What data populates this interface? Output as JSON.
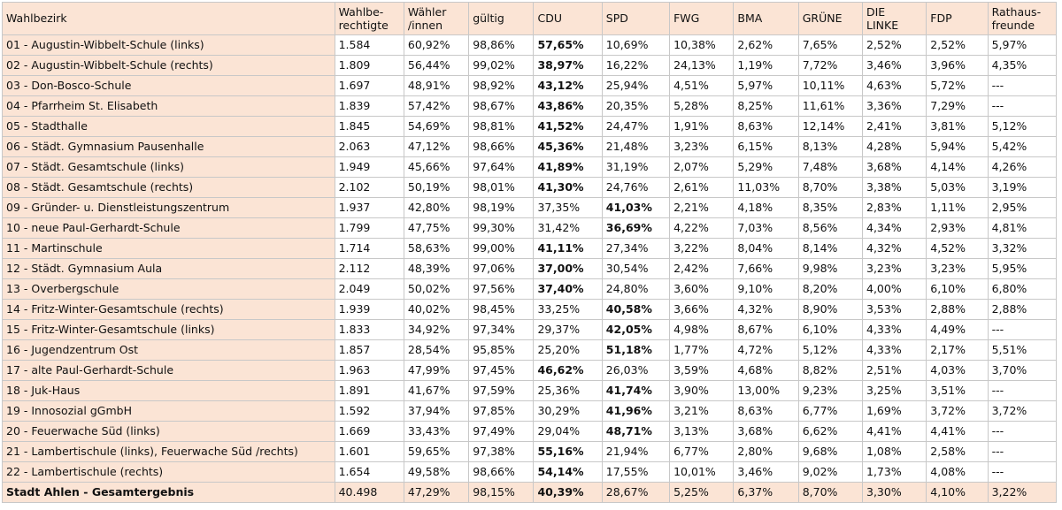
{
  "headers": [
    "Wahlbezirk",
    "Wahlbe-\nrechtigte",
    "Wähler\n/innen",
    "gültig",
    "CDU",
    "SPD",
    "FWG",
    "BMA",
    "GRÜNE",
    "DIE\nLINKE",
    "FDP",
    "Rathaus-\nfreunde"
  ],
  "rows": [
    {
      "cells": [
        "01 - Augustin-Wibbelt-Schule (links)",
        "1.584",
        "60,92%",
        "98,86%",
        "57,65%",
        "10,69%",
        "10,38%",
        "2,62%",
        "7,65%",
        "2,52%",
        "2,52%",
        "5,97%"
      ],
      "bold": [
        4
      ]
    },
    {
      "cells": [
        "02 - Augustin-Wibbelt-Schule (rechts)",
        "1.809",
        "56,44%",
        "99,02%",
        "38,97%",
        "16,22%",
        "24,13%",
        "1,19%",
        "7,72%",
        "3,46%",
        "3,96%",
        "4,35%"
      ],
      "bold": [
        4
      ]
    },
    {
      "cells": [
        "03 - Don-Bosco-Schule",
        "1.697",
        "48,91%",
        "98,92%",
        "43,12%",
        "25,94%",
        "4,51%",
        "5,97%",
        "10,11%",
        "4,63%",
        "5,72%",
        "---"
      ],
      "bold": [
        4
      ]
    },
    {
      "cells": [
        "04 - Pfarrheim St. Elisabeth",
        "1.839",
        "57,42%",
        "98,67%",
        "43,86%",
        "20,35%",
        "5,28%",
        "8,25%",
        "11,61%",
        "3,36%",
        "7,29%",
        "---"
      ],
      "bold": [
        4
      ]
    },
    {
      "cells": [
        "05 - Stadthalle",
        "1.845",
        "54,69%",
        "98,81%",
        "41,52%",
        "24,47%",
        "1,91%",
        "8,63%",
        "12,14%",
        "2,41%",
        "3,81%",
        "5,12%"
      ],
      "bold": [
        4
      ]
    },
    {
      "cells": [
        "06 - Städt. Gymnasium Pausenhalle",
        "2.063",
        "47,12%",
        "98,66%",
        "45,36%",
        "21,48%",
        "3,23%",
        "6,15%",
        "8,13%",
        "4,28%",
        "5,94%",
        "5,42%"
      ],
      "bold": [
        4
      ]
    },
    {
      "cells": [
        "07 - Städt. Gesamtschule (links)",
        "1.949",
        "45,66%",
        "97,64%",
        "41,89%",
        "31,19%",
        "2,07%",
        "5,29%",
        "7,48%",
        "3,68%",
        "4,14%",
        "4,26%"
      ],
      "bold": [
        4
      ]
    },
    {
      "cells": [
        "08 - Städt. Gesamtschule (rechts)",
        "2.102",
        "50,19%",
        "98,01%",
        "41,30%",
        "24,76%",
        "2,61%",
        "11,03%",
        "8,70%",
        "3,38%",
        "5,03%",
        "3,19%"
      ],
      "bold": [
        4
      ]
    },
    {
      "cells": [
        "09 - Gründer- u. Dienstleistungszentrum",
        "1.937",
        "42,80%",
        "98,19%",
        "37,35%",
        "41,03%",
        "2,21%",
        "4,18%",
        "8,35%",
        "2,83%",
        "1,11%",
        "2,95%"
      ],
      "bold": [
        5
      ]
    },
    {
      "cells": [
        "10 - neue Paul-Gerhardt-Schule",
        "1.799",
        "47,75%",
        "99,30%",
        "31,42%",
        "36,69%",
        "4,22%",
        "7,03%",
        "8,56%",
        "4,34%",
        "2,93%",
        "4,81%"
      ],
      "bold": [
        5
      ]
    },
    {
      "cells": [
        "11 - Martinschule",
        "1.714",
        "58,63%",
        "99,00%",
        "41,11%",
        "27,34%",
        "3,22%",
        "8,04%",
        "8,14%",
        "4,32%",
        "4,52%",
        "3,32%"
      ],
      "bold": [
        4
      ]
    },
    {
      "cells": [
        "12 - Städt. Gymnasium Aula",
        "2.112",
        "48,39%",
        "97,06%",
        "37,00%",
        "30,54%",
        "2,42%",
        "7,66%",
        "9,98%",
        "3,23%",
        "3,23%",
        "5,95%"
      ],
      "bold": [
        4
      ]
    },
    {
      "cells": [
        "13 - Overbergschule",
        "2.049",
        "50,02%",
        "97,56%",
        "37,40%",
        "24,80%",
        "3,60%",
        "9,10%",
        "8,20%",
        "4,00%",
        "6,10%",
        "6,80%"
      ],
      "bold": [
        4
      ]
    },
    {
      "cells": [
        "14 - Fritz-Winter-Gesamtschule (rechts)",
        "1.939",
        "40,02%",
        "98,45%",
        "33,25%",
        "40,58%",
        "3,66%",
        "4,32%",
        "8,90%",
        "3,53%",
        "2,88%",
        "2,88%"
      ],
      "bold": [
        5
      ]
    },
    {
      "cells": [
        "15 - Fritz-Winter-Gesamtschule (links)",
        "1.833",
        "34,92%",
        "97,34%",
        "29,37%",
        "42,05%",
        "4,98%",
        "8,67%",
        "6,10%",
        "4,33%",
        "4,49%",
        "---"
      ],
      "bold": [
        5
      ]
    },
    {
      "cells": [
        "16 - Jugendzentrum Ost",
        "1.857",
        "28,54%",
        "95,85%",
        "25,20%",
        "51,18%",
        "1,77%",
        "4,72%",
        "5,12%",
        "4,33%",
        "2,17%",
        "5,51%"
      ],
      "bold": [
        5
      ]
    },
    {
      "cells": [
        "17 - alte Paul-Gerhardt-Schule",
        "1.963",
        "47,99%",
        "97,45%",
        "46,62%",
        "26,03%",
        "3,59%",
        "4,68%",
        "8,82%",
        "2,51%",
        "4,03%",
        "3,70%"
      ],
      "bold": [
        4
      ]
    },
    {
      "cells": [
        "18 - Juk-Haus",
        "1.891",
        "41,67%",
        "97,59%",
        "25,36%",
        "41,74%",
        "3,90%",
        "13,00%",
        "9,23%",
        "3,25%",
        "3,51%",
        "---"
      ],
      "bold": [
        5
      ]
    },
    {
      "cells": [
        "19 - Innosozial gGmbH",
        "1.592",
        "37,94%",
        "97,85%",
        "30,29%",
        "41,96%",
        "3,21%",
        "8,63%",
        "6,77%",
        "1,69%",
        "3,72%",
        "3,72%"
      ],
      "bold": [
        5
      ]
    },
    {
      "cells": [
        "20 - Feuerwache Süd (links)",
        "1.669",
        "33,43%",
        "97,49%",
        "29,04%",
        "48,71%",
        "3,13%",
        "3,68%",
        "6,62%",
        "4,41%",
        "4,41%",
        "---"
      ],
      "bold": [
        5
      ]
    },
    {
      "cells": [
        "21 - Lambertischule (links), Feuerwache Süd /rechts)",
        "1.601",
        "59,65%",
        "97,38%",
        "55,16%",
        "21,94%",
        "6,77%",
        "2,80%",
        "9,68%",
        "1,08%",
        "2,58%",
        "---"
      ],
      "bold": [
        4
      ]
    },
    {
      "cells": [
        "22 - Lambertischule (rechts)",
        "1.654",
        "49,58%",
        "98,66%",
        "54,14%",
        "17,55%",
        "10,01%",
        "3,46%",
        "9,02%",
        "1,73%",
        "4,08%",
        "---"
      ],
      "bold": [
        4
      ]
    }
  ],
  "total": {
    "cells": [
      "Stadt Ahlen - Gesamtergebnis",
      "40.498",
      "47,29%",
      "98,15%",
      "40,39%",
      "28,67%",
      "5,25%",
      "6,37%",
      "8,70%",
      "3,30%",
      "4,10%",
      "3,22%"
    ],
    "bold": [
      0,
      4
    ]
  },
  "colors": {
    "header_bg": "#fbe4d5",
    "border": "#c8c8c8"
  }
}
